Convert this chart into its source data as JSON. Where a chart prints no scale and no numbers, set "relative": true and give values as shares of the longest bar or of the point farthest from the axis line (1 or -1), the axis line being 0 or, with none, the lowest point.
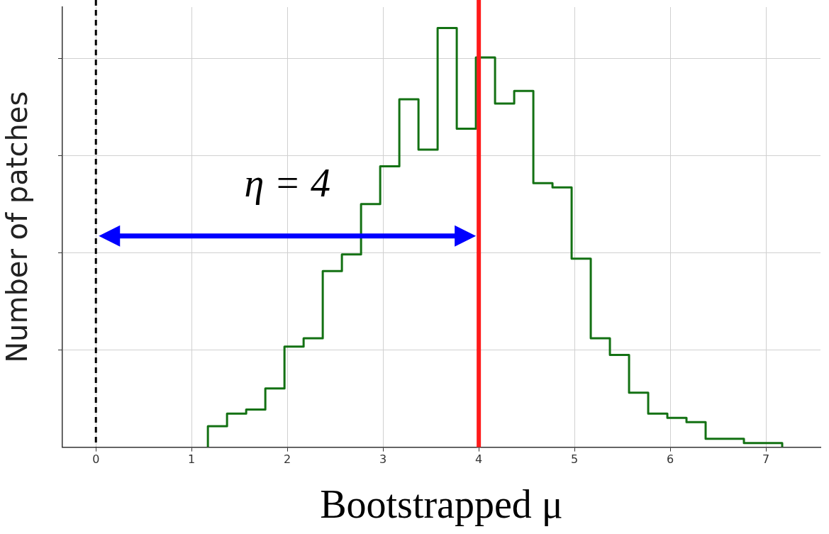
{
  "chart_data": {
    "type": "step",
    "xlabel": "Bootstrapped μ",
    "ylabel": "Number of patches",
    "relative": true,
    "x": [
      1.17,
      1.17,
      1.37,
      1.57,
      1.77,
      1.97,
      2.17,
      2.37,
      2.57,
      2.77,
      2.97,
      3.17,
      3.37,
      3.57,
      3.77,
      3.97,
      4.17,
      4.37,
      4.57,
      4.77,
      4.97,
      5.17,
      5.37,
      5.57,
      5.77,
      5.97,
      6.17,
      6.37,
      6.57,
      6.77,
      6.97,
      7.17,
      7.17
    ],
    "values": [
      0,
      0.04,
      0.05,
      0.08,
      0.09,
      0.14,
      0.24,
      0.26,
      0.42,
      0.46,
      0.58,
      0.67,
      0.83,
      0.71,
      1,
      0.76,
      0.93,
      0.82,
      0.85,
      0.63,
      0.62,
      0.45,
      0.26,
      0.22,
      0.13,
      0.08,
      0.07,
      0.06,
      0.02,
      0.02,
      0.01,
      0.01,
      0
    ],
    "color": "#137113",
    "xlim": [
      -0.35,
      7.57
    ],
    "xticks": [
      0,
      1,
      2,
      3,
      4,
      5,
      6,
      7
    ],
    "grid": true,
    "legend": false,
    "ref_lines": [
      {
        "axis": "x",
        "value": 0,
        "color": "#000000",
        "line_style": "dashed"
      },
      {
        "axis": "x",
        "value": 4,
        "color": "#ff1a1a",
        "line_style": "solid"
      }
    ],
    "annotations": [
      "η = 4"
    ]
  }
}
